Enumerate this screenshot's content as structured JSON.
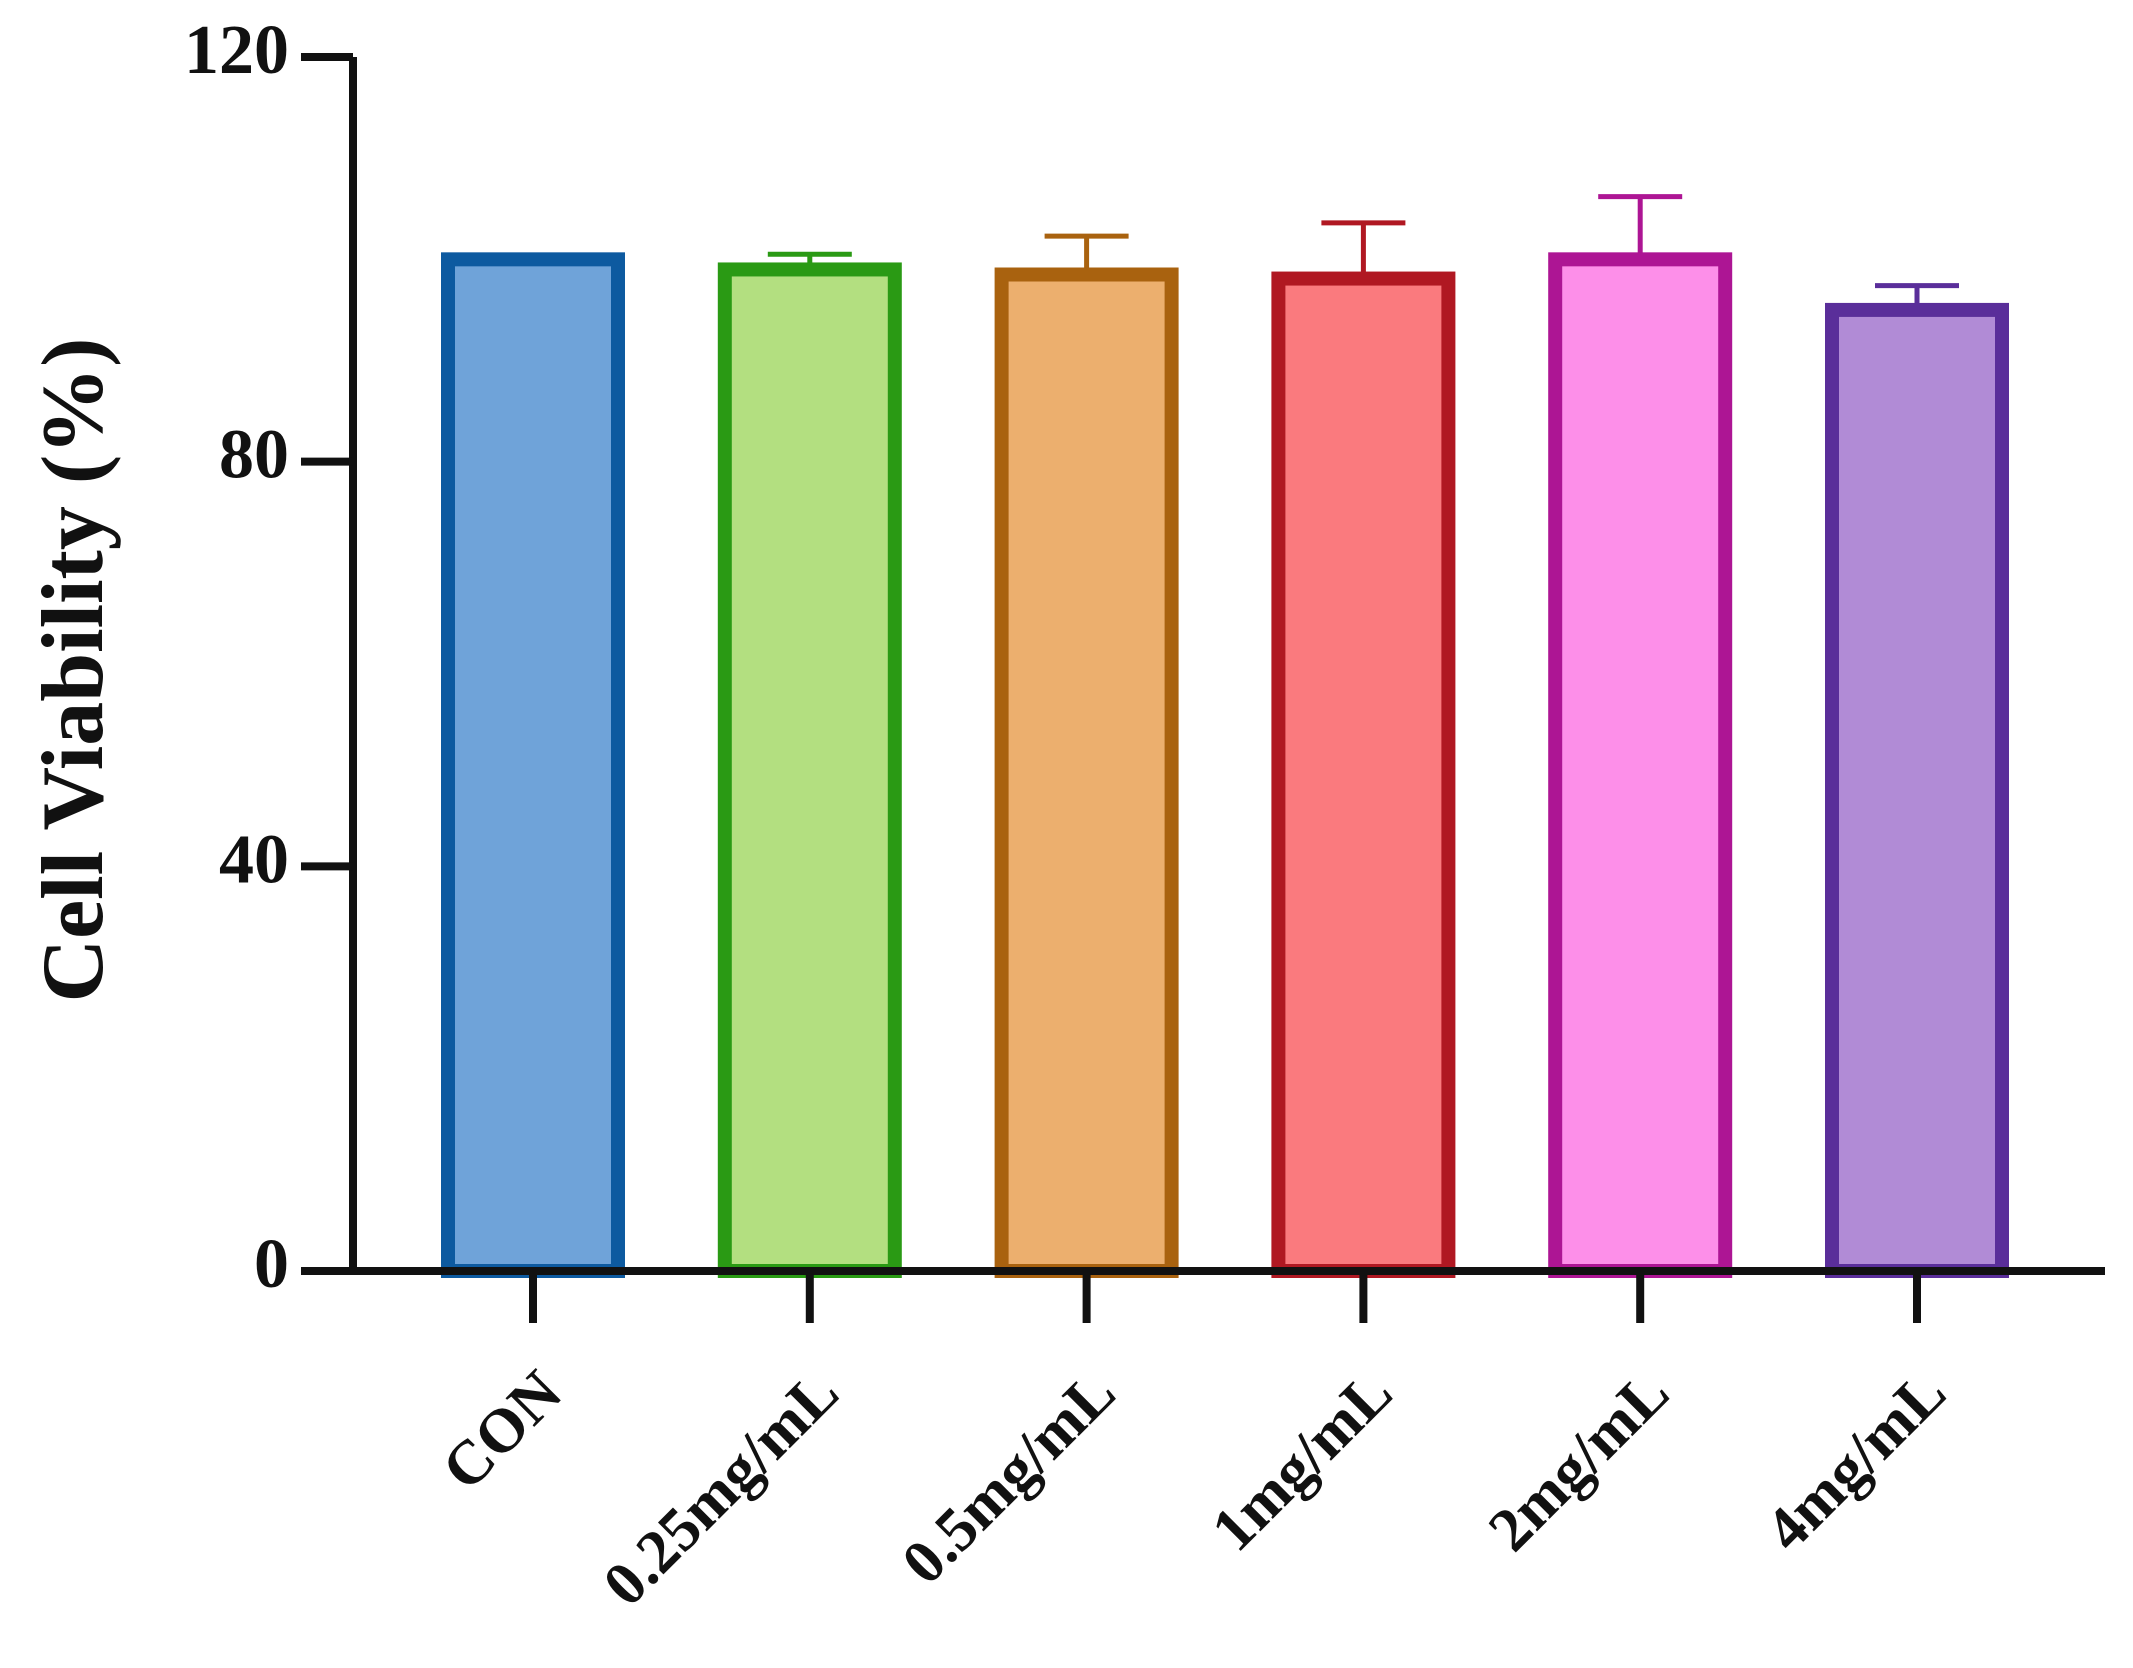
{
  "chart_data": {
    "type": "bar",
    "y_label": "Cell Viability (%)",
    "categories": [
      "CON",
      "0.25mg/mL",
      "0.5mg/mL",
      "1mg/mL",
      "2mg/mL",
      "4mg/mL"
    ],
    "values": [
      100,
      99,
      98.5,
      98.1,
      100,
      95
    ],
    "errors": [
      0,
      1.5,
      3.8,
      5.5,
      6.2,
      2.4
    ],
    "colors": [
      "#6fa3d9",
      "#b3df80",
      "#ecaf6e",
      "#fa7a7e",
      "#fd8fe9",
      "#b18bd6"
    ],
    "edge_colors": [
      "#0d5aa0",
      "#2a9a14",
      "#a9620f",
      "#b01822",
      "#ad1594",
      "#5a2e9a"
    ],
    "ylim": [
      0,
      120
    ],
    "yticks": [
      0,
      40,
      80,
      120
    ]
  }
}
